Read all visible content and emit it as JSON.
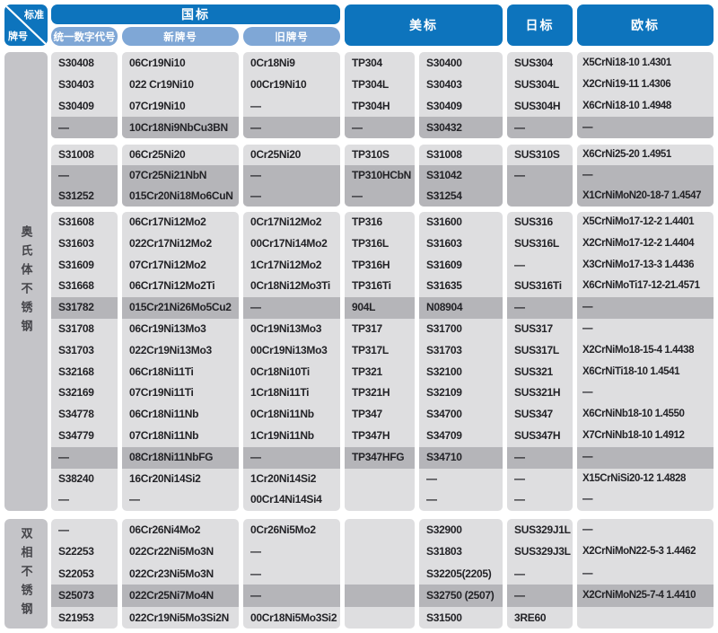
{
  "colors": {
    "header_blue": "#0d74bd",
    "subheader_blue": "#7fa7d6",
    "row_light": "#dedee0",
    "row_highlight": "#b5b5b9",
    "label_gray": "#c4c4c8",
    "text": "#232327"
  },
  "header": {
    "corner": {
      "top": "标准",
      "bottom": "牌号"
    },
    "gb": {
      "label": "国标",
      "sub": [
        "统一数字代号",
        "新牌号",
        "旧牌号"
      ]
    },
    "us": "美标",
    "jp": "日标",
    "eu": "欧标"
  },
  "sections": [
    {
      "label": "奥氏体不锈钢",
      "blocks": [
        {
          "rows": [
            {
              "h": 0,
              "c": [
                "S30408",
                "06Cr19Ni10",
                "0Cr18Ni9",
                "TP304",
                "S30400",
                "SUS304",
                "X5CrNi18-10 1.4301"
              ]
            },
            {
              "h": 0,
              "c": [
                "S30403",
                "022 Cr19Ni10",
                "00Cr19Ni10",
                "TP304L",
                "S30403",
                "SUS304L",
                "X2CrNi19-11  1.4306"
              ]
            },
            {
              "h": 0,
              "c": [
                "S30409",
                "07Cr19Ni10",
                "—",
                "TP304H",
                "S30409",
                "SUS304H",
                "X6CrNi18-10  1.4948"
              ]
            },
            {
              "h": 1,
              "c": [
                "—",
                "10Cr18Ni9NbCu3BN",
                "—",
                "—",
                "S30432",
                "—",
                "—"
              ]
            }
          ]
        },
        {
          "rows": [
            {
              "h": 0,
              "c": [
                "S31008",
                "06Cr25Ni20",
                "0Cr25Ni20",
                "TP310S",
                "S31008",
                "SUS310S",
                "X6CrNi25-20 1.4951"
              ]
            },
            {
              "h": 1,
              "c": [
                "—",
                "07Cr25Ni21NbN",
                "—",
                "TP310HCbN",
                "S31042",
                "—",
                "—"
              ]
            },
            {
              "h": 1,
              "c": [
                "S31252",
                "015Cr20Ni18Mo6CuN",
                "—",
                "—",
                "S31254",
                "",
                "X1CrNiMoN20-18-7 1.4547"
              ]
            }
          ]
        },
        {
          "rows": [
            {
              "h": 0,
              "c": [
                "S31608",
                "06Cr17Ni12Mo2",
                "0Cr17Ni12Mo2",
                "TP316",
                "S31600",
                "SUS316",
                "X5CrNiMo17-12-2 1.4401"
              ]
            },
            {
              "h": 0,
              "c": [
                "S31603",
                "022Cr17Ni12Mo2",
                "00Cr17Ni14Mo2",
                "TP316L",
                "S31603",
                "SUS316L",
                "X2CrNiMo17-12-2 1.4404"
              ]
            },
            {
              "h": 0,
              "c": [
                "S31609",
                "07Cr17Ni12Mo2",
                "1Cr17Ni12Mo2",
                "TP316H",
                "S31609",
                "—",
                "X3CrNiMo17-13-3 1.4436"
              ]
            },
            {
              "h": 0,
              "c": [
                "S31668",
                "06Cr17Ni12Mo2Ti",
                "0Cr18Ni12Mo3Ti",
                "TP316Ti",
                "S31635",
                "SUS316Ti",
                "X6CrNiMoTi17-12-21.4571"
              ]
            },
            {
              "h": 1,
              "c": [
                "S31782",
                "015Cr21Ni26Mo5Cu2",
                "—",
                "904L",
                "N08904",
                "—",
                "—"
              ]
            },
            {
              "h": 0,
              "c": [
                "S31708",
                "06Cr19Ni13Mo3",
                "0Cr19Ni13Mo3",
                "TP317",
                "S31700",
                "SUS317",
                "—"
              ]
            },
            {
              "h": 0,
              "c": [
                "S31703",
                "022Cr19Ni13Mo3",
                "00Cr19Ni13Mo3",
                "TP317L",
                "S31703",
                "SUS317L",
                "X2CrNiMo18-15-4 1.4438"
              ]
            },
            {
              "h": 0,
              "c": [
                "S32168",
                "06Cr18Ni11Ti",
                "0Cr18Ni10Ti",
                "TP321",
                "S32100",
                "SUS321",
                "X6CrNiTi18-10 1.4541"
              ]
            },
            {
              "h": 0,
              "c": [
                "S32169",
                "07Cr19Ni11Ti",
                "1Cr18Ni11Ti",
                "TP321H",
                "S32109",
                "SUS321H",
                "—"
              ]
            },
            {
              "h": 0,
              "c": [
                "S34778",
                "06Cr18Ni11Nb",
                "0Cr18Ni11Nb",
                "TP347",
                "S34700",
                "SUS347",
                "X6CrNiNb18-10 1.4550"
              ]
            },
            {
              "h": 0,
              "c": [
                "S34779",
                "07Cr18Ni11Nb",
                "1Cr19Ni11Nb",
                "TP347H",
                "S34709",
                "SUS347H",
                "X7CrNiNb18-10 1.4912"
              ]
            },
            {
              "h": 1,
              "c": [
                "—",
                "08Cr18Ni11NbFG",
                "—",
                "TP347HFG",
                "S34710",
                "—",
                "—"
              ]
            },
            {
              "h": 0,
              "c": [
                "S38240",
                "16Cr20Ni14Si2",
                "1Cr20Ni14Si2",
                "",
                "—",
                "—",
                "X15CrNiSi20-12 1.4828"
              ]
            },
            {
              "h": 0,
              "c": [
                "—",
                "—",
                "00Cr14Ni14Si4",
                "",
                "—",
                "—",
                "—"
              ]
            }
          ]
        }
      ]
    },
    {
      "label": "双相不锈钢",
      "blocks": [
        {
          "rows": [
            {
              "h": 0,
              "c": [
                "—",
                "06Cr26Ni4Mo2",
                "0Cr26Ni5Mo2",
                "",
                "S32900",
                "SUS329J1L",
                "—"
              ]
            },
            {
              "h": 0,
              "c": [
                "S22253",
                "022Cr22Ni5Mo3N",
                "—",
                "",
                "S31803",
                "SUS329J3L",
                "X2CrNiMoN22-5-3 1.4462"
              ]
            },
            {
              "h": 0,
              "c": [
                "S22053",
                "022Cr23Ni5Mo3N",
                "—",
                "",
                "S32205(2205)",
                "—",
                "—"
              ]
            },
            {
              "h": 1,
              "c": [
                "S25073",
                "022Cr25Ni7Mo4N",
                "—",
                "",
                "S32750 (2507)",
                "—",
                "X2CrNiMoN25-7-4 1.4410"
              ]
            },
            {
              "h": 0,
              "c": [
                "S21953",
                "022Cr19Ni5Mo3Si2N",
                "00Cr18Ni5Mo3Si2",
                "",
                "S31500",
                "3RE60",
                ""
              ]
            }
          ]
        }
      ]
    }
  ]
}
